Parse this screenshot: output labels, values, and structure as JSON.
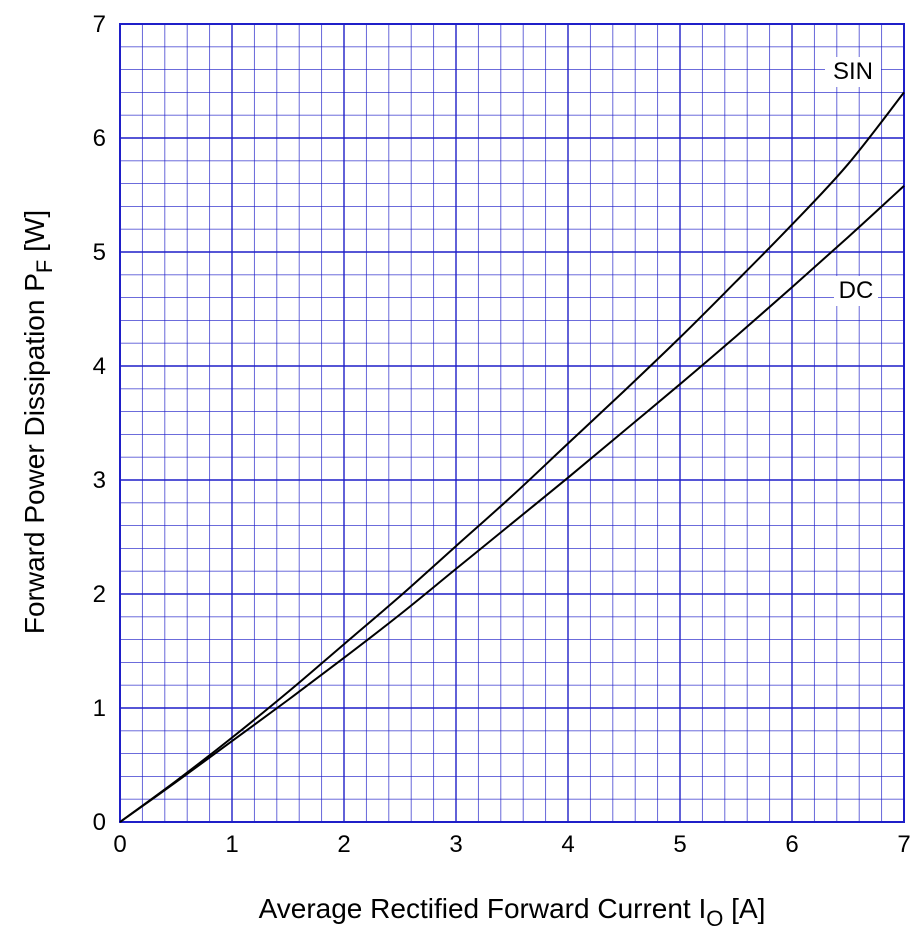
{
  "chart_data": {
    "type": "line",
    "xlabel": {
      "main": "Average Rectified Forward Current  I",
      "sub": "O",
      "unit": " [A]"
    },
    "ylabel": {
      "main": "Forward Power Dissipation  P",
      "sub": "F",
      "unit": "  [W]"
    },
    "xlim": [
      0,
      7
    ],
    "ylim": [
      0,
      7
    ],
    "x_ticks": [
      0,
      1,
      2,
      3,
      4,
      5,
      6,
      7
    ],
    "y_ticks": [
      0,
      1,
      2,
      3,
      4,
      5,
      6,
      7
    ],
    "minor_divisions_per_unit": 5,
    "grid": true,
    "colors": {
      "grid": "#1f1fc8",
      "curve": "#000000",
      "frame": "#1f1fc8"
    },
    "series": [
      {
        "name": "SIN",
        "x": [
          0,
          0.5,
          1,
          1.5,
          2,
          2.5,
          3,
          3.5,
          4,
          4.5,
          5,
          5.5,
          6,
          6.5,
          7
        ],
        "y": [
          0,
          0.36,
          0.74,
          1.14,
          1.56,
          1.98,
          2.42,
          2.86,
          3.32,
          3.78,
          4.25,
          4.74,
          5.24,
          5.77,
          6.4
        ]
      },
      {
        "name": "DC",
        "x": [
          0,
          0.5,
          1,
          1.5,
          2,
          2.5,
          3,
          3.5,
          4,
          4.5,
          5,
          5.5,
          6,
          6.5,
          7
        ],
        "y": [
          0,
          0.35,
          0.71,
          1.07,
          1.44,
          1.82,
          2.22,
          2.62,
          3.02,
          3.43,
          3.84,
          4.26,
          4.69,
          5.13,
          5.58
        ]
      }
    ]
  }
}
